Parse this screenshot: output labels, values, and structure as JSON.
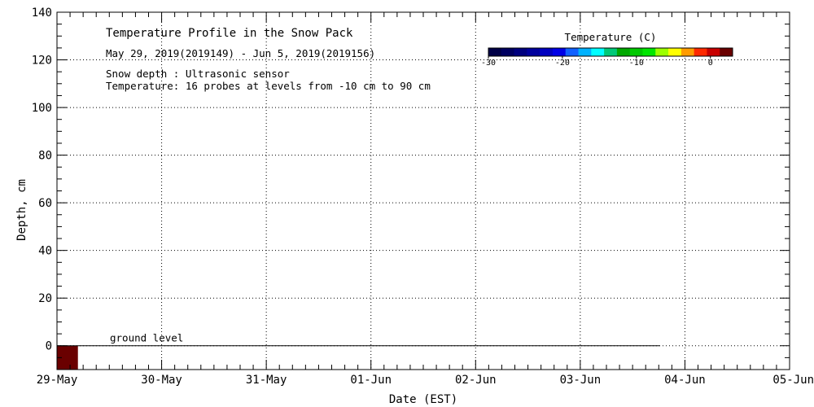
{
  "chart_data": {
    "type": "heatmap",
    "title": "Temperature Profile in the Snow Pack",
    "subtitle": "May 29, 2019(2019149) - Jun  5, 2019(2019156)",
    "notes": [
      "Snow depth : Ultrasonic sensor",
      "Temperature: 16 probes at levels from -10 cm to 90 cm"
    ],
    "xlabel": "Date (EST)",
    "ylabel": "Depth, cm",
    "x_ticks": [
      "29-May",
      "30-May",
      "31-May",
      "01-Jun",
      "02-Jun",
      "03-Jun",
      "04-Jun",
      "05-Jun"
    ],
    "x_range_days": [
      0,
      7
    ],
    "ylim": [
      -10,
      140
    ],
    "y_ticks": [
      0,
      20,
      40,
      60,
      80,
      100,
      120,
      140
    ],
    "grid": true,
    "ground_level": {
      "label": "ground level",
      "depth": 0,
      "x_end_days": 5.76
    },
    "temperature_cells": [
      {
        "x_start_days": 0,
        "x_end_days": 0.2,
        "depth_from": -10,
        "depth_to": 0,
        "color": "#6a0000"
      }
    ],
    "colorbar": {
      "title": "Temperature (C)",
      "placement": "top-right",
      "range": [
        -30,
        3
      ],
      "tick_values": [
        -30,
        -20,
        -10,
        0
      ],
      "tick_labels": [
        "-30",
        "-20",
        "-10",
        "0"
      ],
      "colors": [
        "#000046",
        "#000060",
        "#00007e",
        "#00009c",
        "#0000bf",
        "#0000e6",
        "#1060ff",
        "#00b2ff",
        "#00ffff",
        "#00c878",
        "#00a800",
        "#00c800",
        "#00e600",
        "#9cff00",
        "#ffff00",
        "#ff9c00",
        "#ff2a00",
        "#c80000",
        "#6a0000"
      ]
    }
  }
}
